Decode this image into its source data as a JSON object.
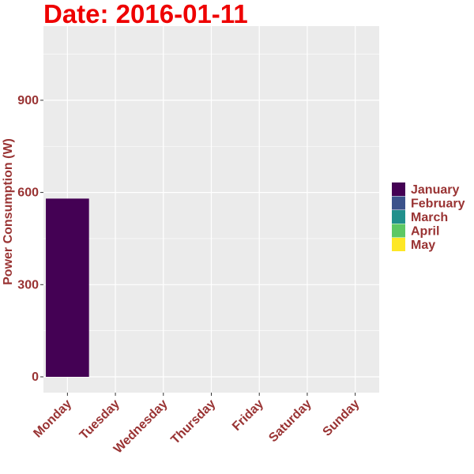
{
  "chart_data": {
    "type": "bar",
    "title": "Date: 2016-01-11",
    "xlabel": "",
    "ylabel": "Power Consumption (W)",
    "categories": [
      "Monday",
      "Tuesday",
      "Wednesday",
      "Thursday",
      "Friday",
      "Saturday",
      "Sunday"
    ],
    "ylim": [
      0,
      1100
    ],
    "yticks": [
      0,
      300,
      600,
      900
    ],
    "grid": true,
    "legend_position": "right",
    "series": [
      {
        "name": "January",
        "color": "#440154",
        "values": [
          580,
          0,
          0,
          0,
          0,
          0,
          0
        ]
      },
      {
        "name": "February",
        "color": "#3b528b",
        "values": [
          0,
          0,
          0,
          0,
          0,
          0,
          0
        ]
      },
      {
        "name": "March",
        "color": "#21908c",
        "values": [
          0,
          0,
          0,
          0,
          0,
          0,
          0
        ]
      },
      {
        "name": "April",
        "color": "#5dc863",
        "values": [
          0,
          0,
          0,
          0,
          0,
          0,
          0
        ]
      },
      {
        "name": "May",
        "color": "#fde725",
        "values": [
          0,
          0,
          0,
          0,
          0,
          0,
          0
        ]
      }
    ],
    "colors": {
      "panel_background": "#ebebeb",
      "gridline": "#ffffff",
      "title": "#ee0000",
      "axis_text": "#993333"
    }
  }
}
